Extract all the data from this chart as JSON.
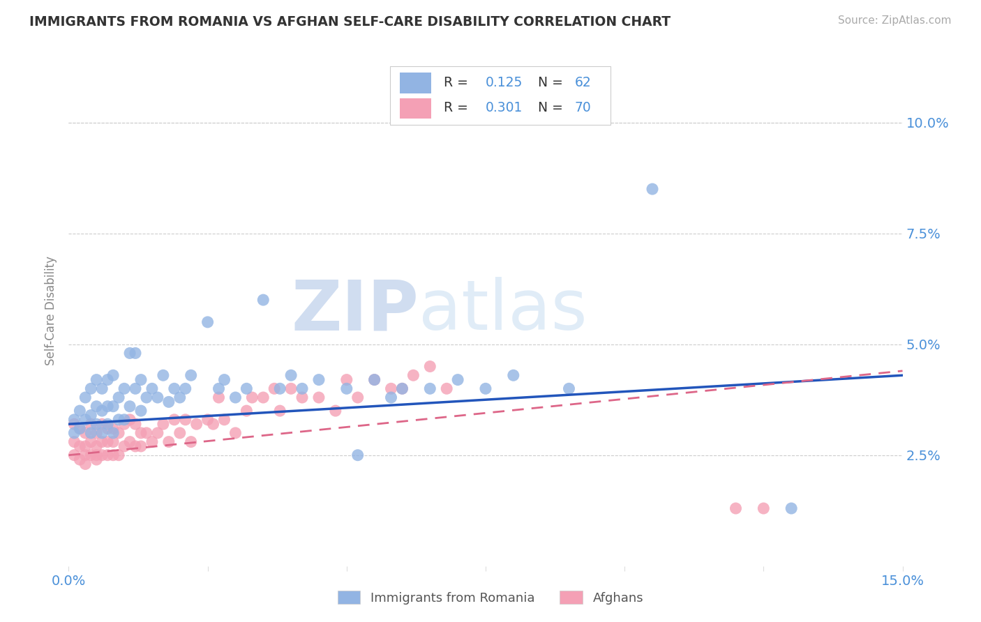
{
  "title": "IMMIGRANTS FROM ROMANIA VS AFGHAN SELF-CARE DISABILITY CORRELATION CHART",
  "source": "Source: ZipAtlas.com",
  "ylabel_label": "Self-Care Disability",
  "xlim": [
    0.0,
    0.15
  ],
  "ylim": [
    0.0,
    0.115
  ],
  "r_romania": 0.125,
  "n_romania": 62,
  "r_afghan": 0.301,
  "n_afghan": 70,
  "romania_color": "#92b4e3",
  "afghan_color": "#f4a0b5",
  "trend_romania_color": "#2255bb",
  "trend_afghan_color": "#dd6688",
  "background_color": "#ffffff",
  "watermark_zip": "ZIP",
  "watermark_atlas": "atlas",
  "tick_color": "#4a90d9",
  "label_color": "#333333",
  "source_color": "#aaaaaa",
  "legend_text_color": "#333333",
  "legend_num_color": "#4a90d9",
  "romania_x": [
    0.001,
    0.001,
    0.002,
    0.002,
    0.003,
    0.003,
    0.004,
    0.004,
    0.004,
    0.005,
    0.005,
    0.005,
    0.006,
    0.006,
    0.006,
    0.007,
    0.007,
    0.007,
    0.008,
    0.008,
    0.008,
    0.009,
    0.009,
    0.01,
    0.01,
    0.011,
    0.011,
    0.012,
    0.012,
    0.013,
    0.013,
    0.014,
    0.015,
    0.016,
    0.017,
    0.018,
    0.019,
    0.02,
    0.021,
    0.022,
    0.025,
    0.027,
    0.028,
    0.03,
    0.032,
    0.035,
    0.038,
    0.04,
    0.042,
    0.045,
    0.05,
    0.052,
    0.055,
    0.058,
    0.06,
    0.065,
    0.07,
    0.075,
    0.08,
    0.09,
    0.105,
    0.13
  ],
  "romania_y": [
    0.03,
    0.033,
    0.031,
    0.035,
    0.033,
    0.038,
    0.03,
    0.034,
    0.04,
    0.032,
    0.036,
    0.042,
    0.03,
    0.035,
    0.04,
    0.032,
    0.036,
    0.042,
    0.03,
    0.036,
    0.043,
    0.033,
    0.038,
    0.033,
    0.04,
    0.048,
    0.036,
    0.04,
    0.048,
    0.035,
    0.042,
    0.038,
    0.04,
    0.038,
    0.043,
    0.037,
    0.04,
    0.038,
    0.04,
    0.043,
    0.055,
    0.04,
    0.042,
    0.038,
    0.04,
    0.06,
    0.04,
    0.043,
    0.04,
    0.042,
    0.04,
    0.025,
    0.042,
    0.038,
    0.04,
    0.04,
    0.042,
    0.04,
    0.043,
    0.04,
    0.085,
    0.013
  ],
  "afghan_x": [
    0.001,
    0.001,
    0.001,
    0.002,
    0.002,
    0.002,
    0.003,
    0.003,
    0.003,
    0.003,
    0.004,
    0.004,
    0.004,
    0.005,
    0.005,
    0.005,
    0.005,
    0.006,
    0.006,
    0.006,
    0.007,
    0.007,
    0.007,
    0.008,
    0.008,
    0.008,
    0.009,
    0.009,
    0.01,
    0.01,
    0.011,
    0.011,
    0.012,
    0.012,
    0.013,
    0.013,
    0.014,
    0.015,
    0.016,
    0.017,
    0.018,
    0.019,
    0.02,
    0.021,
    0.022,
    0.023,
    0.025,
    0.026,
    0.027,
    0.028,
    0.03,
    0.032,
    0.033,
    0.035,
    0.037,
    0.038,
    0.04,
    0.042,
    0.045,
    0.048,
    0.05,
    0.052,
    0.055,
    0.058,
    0.06,
    0.062,
    0.065,
    0.068,
    0.12,
    0.125
  ],
  "afghan_y": [
    0.025,
    0.028,
    0.032,
    0.024,
    0.027,
    0.031,
    0.023,
    0.027,
    0.03,
    0.025,
    0.025,
    0.028,
    0.032,
    0.024,
    0.027,
    0.03,
    0.025,
    0.025,
    0.028,
    0.032,
    0.025,
    0.028,
    0.031,
    0.025,
    0.028,
    0.031,
    0.025,
    0.03,
    0.027,
    0.032,
    0.028,
    0.033,
    0.027,
    0.032,
    0.027,
    0.03,
    0.03,
    0.028,
    0.03,
    0.032,
    0.028,
    0.033,
    0.03,
    0.033,
    0.028,
    0.032,
    0.033,
    0.032,
    0.038,
    0.033,
    0.03,
    0.035,
    0.038,
    0.038,
    0.04,
    0.035,
    0.04,
    0.038,
    0.038,
    0.035,
    0.042,
    0.038,
    0.042,
    0.04,
    0.04,
    0.043,
    0.045,
    0.04,
    0.013,
    0.013
  ]
}
